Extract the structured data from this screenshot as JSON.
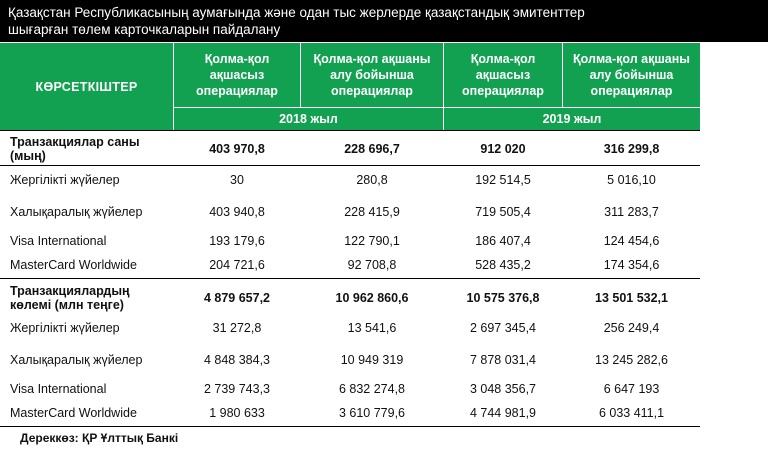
{
  "title": {
    "line1": "Қазақстан Республикасының аумағында және одан тыс жерлерде қазақстандық эмитенттер",
    "line2": "шығарған төлем карточкаларын пайдалану"
  },
  "header": {
    "label": "КӨРСЕТКІШТЕР",
    "columns": [
      "Қолма-қол ақшасыз операциялар",
      "Қолма-қол ақшаны алу бойынша операциялар",
      "Қолма-қол ақшасыз операциялар",
      "Қолма-қол ақшаны алу бойынша операциялар"
    ],
    "years": [
      "2018 жыл",
      "2019 жыл"
    ]
  },
  "rows": [
    {
      "label": "Транзакциялар саны (мың)",
      "bold": true,
      "values": [
        "403 970,8",
        "228 696,7",
        "912 020",
        "316 299,8"
      ]
    },
    {
      "label": "Жергілікті жүйелер",
      "bold": false,
      "values": [
        "30",
        "280,8",
        "192 514,5",
        "5 016,10"
      ]
    },
    {
      "label": "Халықаралық жүйелер",
      "bold": false,
      "values": [
        "403 940,8",
        "228 415,9",
        "719 505,4",
        "311 283,7"
      ]
    },
    {
      "label": "Visa International",
      "bold": false,
      "values": [
        "193 179,6",
        "122 790,1",
        "186 407,4",
        "124 454,6"
      ]
    },
    {
      "label": "MasterCard Worldwide",
      "bold": false,
      "values": [
        "204 721,6",
        "92 708,8",
        "528 435,2",
        "174 354,6"
      ]
    },
    {
      "label": "Транзакциялардың көлемі (млн теңге)",
      "bold": true,
      "values": [
        "4 879 657,2",
        "10 962 860,6",
        "10 575 376,8",
        "13 501 532,1"
      ]
    },
    {
      "label": "Жергілікті жүйелер",
      "bold": false,
      "values": [
        "31 272,8",
        "13 541,6",
        "2 697 345,4",
        "256 249,4"
      ]
    },
    {
      "label": "Халықаралық жүйелер",
      "bold": false,
      "values": [
        "4 848 384,3",
        "10 949 319",
        "7 878 031,4",
        "13 245 282,6"
      ]
    },
    {
      "label": "Visa International",
      "bold": false,
      "values": [
        "2 739 743,3",
        "6 832 274,8",
        "3 048 356,7",
        "6 647 193"
      ]
    },
    {
      "label": "MasterCard Worldwide",
      "bold": false,
      "values": [
        "1 980 633",
        "3 610 779,6",
        "4 744 981,9",
        "6 033 411,1"
      ]
    }
  ],
  "source": "Дереккөз: ҚР Ұлттық Банкі"
}
